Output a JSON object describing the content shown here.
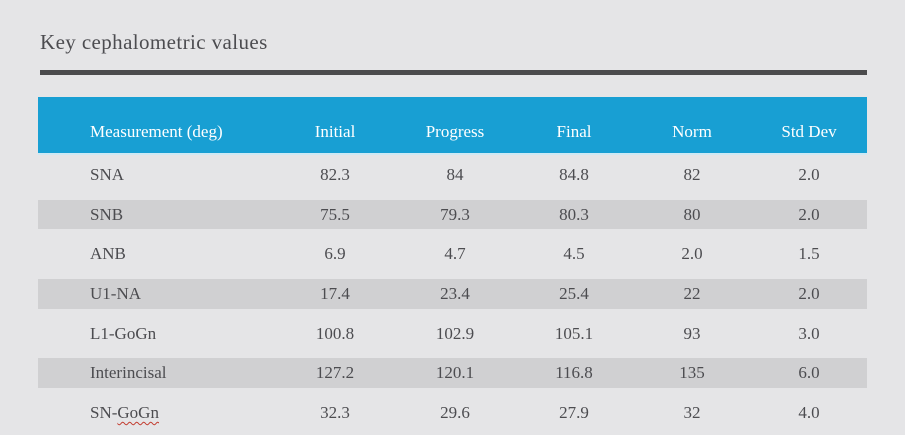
{
  "title": "Key cephalometric values",
  "colors": {
    "page_background": "#e5e5e7",
    "header_background": "#189fd3",
    "header_text": "#ffffff",
    "row_band": "#d0d0d2",
    "body_text": "#4c4c50",
    "title_rule": "#4b4b4d",
    "spellcheck_underline": "#c23b2e"
  },
  "chart_data": {
    "type": "table",
    "title": "Key cephalometric values",
    "columns": [
      "Measurement (deg)",
      "Initial",
      "Progress",
      "Final",
      "Norm",
      "Std Dev"
    ],
    "rows": [
      {
        "measurement": "SNA",
        "values": [
          "82.3",
          "84",
          "84.8",
          "82",
          "2.0"
        ]
      },
      {
        "measurement": "SNB",
        "values": [
          "75.5",
          "79.3",
          "80.3",
          "80",
          "2.0"
        ]
      },
      {
        "measurement": "ANB",
        "values": [
          "6.9",
          "4.7",
          "4.5",
          "2.0",
          "1.5"
        ]
      },
      {
        "measurement": "U1-NA",
        "values": [
          "17.4",
          "23.4",
          "25.4",
          "22",
          "2.0"
        ]
      },
      {
        "measurement": "L1-GoGn",
        "values": [
          "100.8",
          "102.9",
          "105.1",
          "93",
          "3.0"
        ]
      },
      {
        "measurement": "Interincisal",
        "values": [
          "127.2",
          "120.1",
          "116.8",
          "135",
          "6.0"
        ]
      },
      {
        "measurement": "SN-GoGn",
        "values": [
          "32.3",
          "29.6",
          "27.9",
          "32",
          "4.0"
        ],
        "label_prefix": "SN-",
        "label_misspelled": "GoGn"
      }
    ],
    "layout": {
      "banded_row_indexes": [
        1,
        3,
        5
      ],
      "first_column_align": "left",
      "value_columns_align": "center"
    }
  }
}
